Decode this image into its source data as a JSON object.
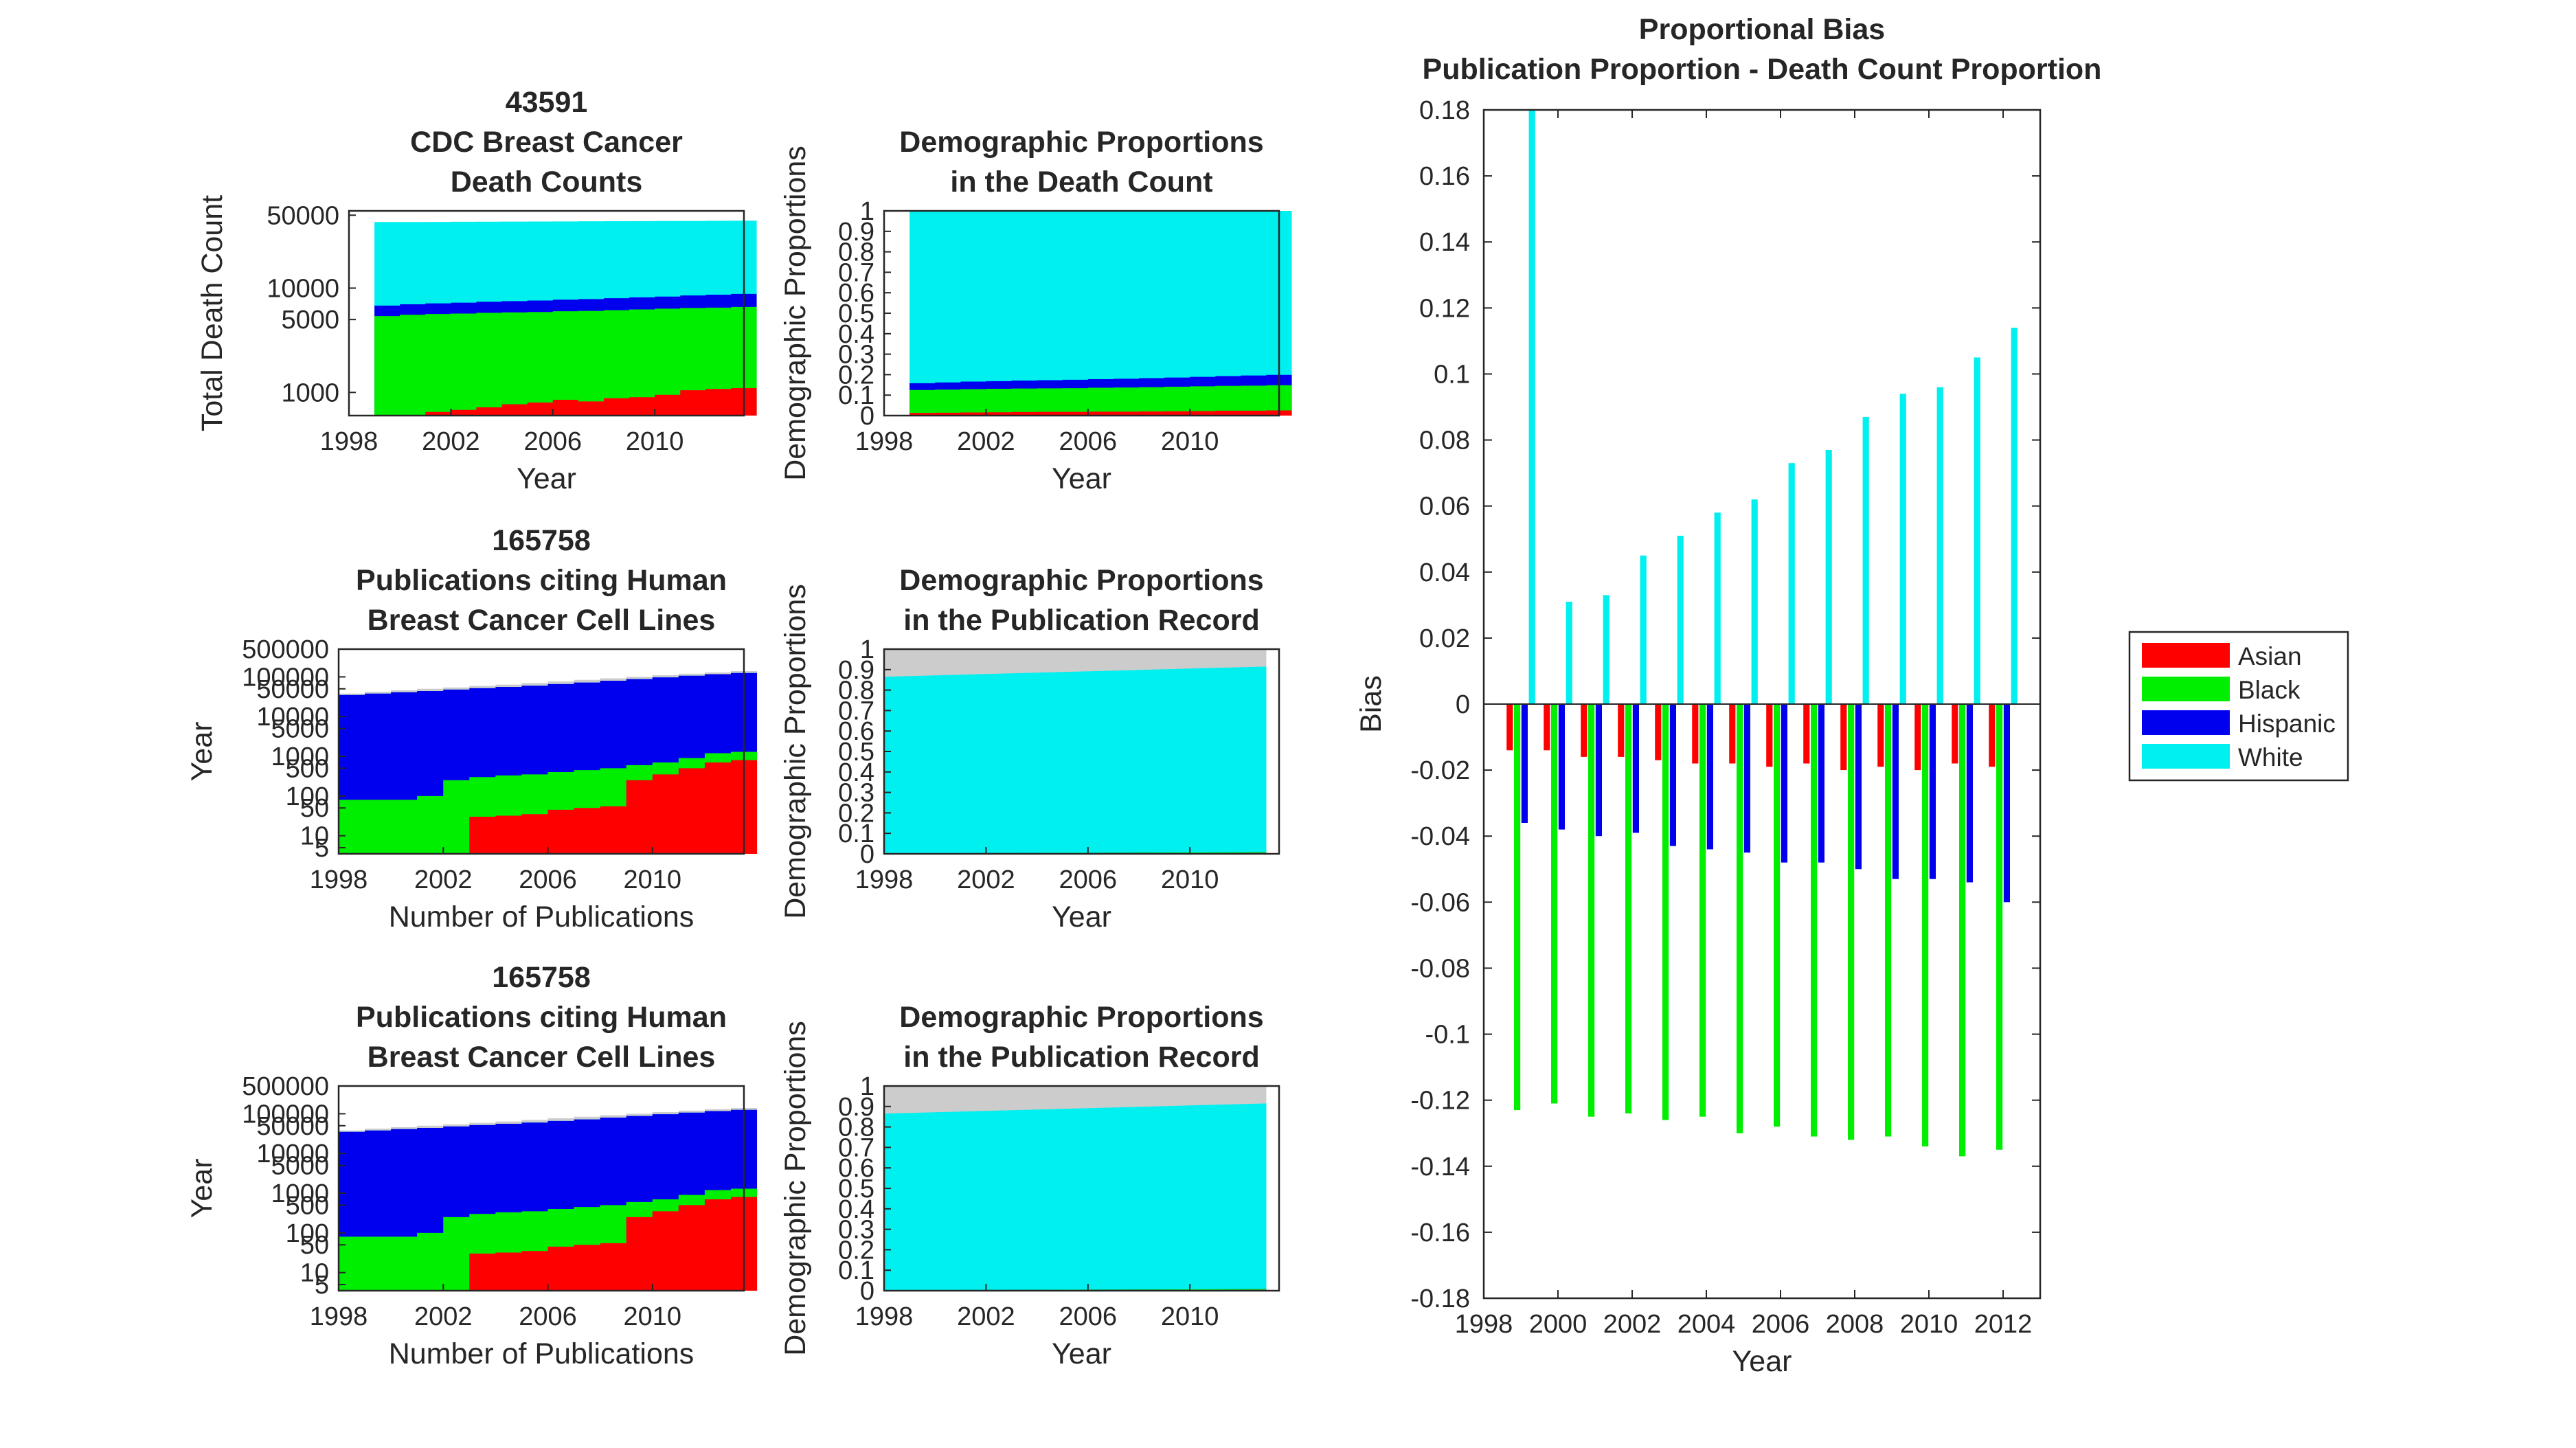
{
  "colors": {
    "Asian": "#ff0000",
    "Black": "#00ee00",
    "Hispanic": "#0000ee",
    "White": "#00f0f0",
    "Other": "#cccccc"
  },
  "chart_data": [
    {
      "id": "deaths",
      "type": "area",
      "title": [
        "43591",
        "CDC Breast Cancer",
        "Death Counts"
      ],
      "xlabel": "Year",
      "ylabel": "Total Death Count",
      "yscale": "log",
      "xlim": [
        1998,
        2013.5
      ],
      "ylim": [
        600,
        55000
      ],
      "xticks": [
        1998,
        2002,
        2006,
        2010
      ],
      "yticks": [
        1000,
        5000,
        10000,
        50000
      ],
      "ytick_labels": [
        "1000",
        "5000",
        "10000",
        "50000"
      ],
      "x": [
        1999,
        2000,
        2001,
        2002,
        2003,
        2004,
        2005,
        2006,
        2007,
        2008,
        2009,
        2010,
        2011,
        2012,
        2013
      ],
      "cumulative": [
        {
          "name": "Asian",
          "values": [
            580,
            600,
            650,
            680,
            720,
            770,
            800,
            850,
            820,
            880,
            900,
            950,
            1050,
            1080,
            1100
          ]
        },
        {
          "name": "Black",
          "values": [
            5400,
            5550,
            5650,
            5700,
            5800,
            5850,
            5900,
            6000,
            6050,
            6150,
            6250,
            6350,
            6450,
            6500,
            6600
          ]
        },
        {
          "name": "Hispanic",
          "values": [
            6800,
            7000,
            7150,
            7250,
            7400,
            7500,
            7600,
            7750,
            7850,
            8000,
            8150,
            8300,
            8500,
            8650,
            8800
          ]
        },
        {
          "name": "White",
          "values": [
            43000,
            43000,
            43100,
            43200,
            43300,
            43400,
            43500,
            43600,
            43700,
            43800,
            43900,
            44000,
            44100,
            44200,
            44300
          ]
        }
      ]
    },
    {
      "id": "death_prop",
      "type": "area",
      "title": [
        "Demographic Proportions",
        "in the Death Count"
      ],
      "xlabel": "Year",
      "ylabel": "Demographic Proportions",
      "xlim": [
        1998,
        2013.5
      ],
      "ylim": [
        0,
        1
      ],
      "xticks": [
        1998,
        2002,
        2006,
        2010
      ],
      "yticks": [
        0,
        0.1,
        0.2,
        0.3,
        0.4,
        0.5,
        0.6,
        0.7,
        0.8,
        0.9,
        1
      ],
      "ytick_labels": [
        "0",
        "0.1",
        "0.2",
        "0.3",
        "0.4",
        "0.5",
        "0.6",
        "0.7",
        "0.8",
        "0.9",
        "1"
      ],
      "x": [
        1999,
        2000,
        2001,
        2002,
        2003,
        2004,
        2005,
        2006,
        2007,
        2008,
        2009,
        2010,
        2011,
        2012,
        2013
      ],
      "cumulative": [
        {
          "name": "Asian",
          "values": [
            0.013,
            0.014,
            0.015,
            0.016,
            0.017,
            0.018,
            0.018,
            0.019,
            0.019,
            0.02,
            0.021,
            0.022,
            0.024,
            0.024,
            0.025
          ]
        },
        {
          "name": "Black",
          "values": [
            0.125,
            0.127,
            0.129,
            0.131,
            0.132,
            0.133,
            0.134,
            0.136,
            0.137,
            0.139,
            0.141,
            0.143,
            0.145,
            0.146,
            0.148
          ]
        },
        {
          "name": "Hispanic",
          "values": [
            0.158,
            0.162,
            0.166,
            0.168,
            0.171,
            0.173,
            0.175,
            0.178,
            0.18,
            0.183,
            0.186,
            0.189,
            0.193,
            0.196,
            0.199
          ]
        },
        {
          "name": "White",
          "values": [
            1,
            1,
            1,
            1,
            1,
            1,
            1,
            1,
            1,
            1,
            1,
            1,
            1,
            1,
            1
          ]
        }
      ]
    },
    {
      "id": "pubs1",
      "type": "area",
      "title": [
        "165758",
        "Publications citing Human",
        "Breast Cancer Cell Lines"
      ],
      "xlabel": "Number of Publications",
      "ylabel": "Year",
      "yscale": "log",
      "xlim": [
        1998,
        2013.5
      ],
      "ylim": [
        3.5,
        500000
      ],
      "xticks": [
        1998,
        2002,
        2006,
        2010
      ],
      "yticks": [
        5,
        10,
        50,
        100,
        500,
        1000,
        5000,
        10000,
        50000,
        100000,
        500000
      ],
      "ytick_labels": [
        "5",
        "10",
        "50",
        "100",
        "500",
        "1000",
        "5000",
        "10000",
        "50000",
        "100000",
        "500000"
      ],
      "x": [
        1998,
        1999,
        2000,
        2001,
        2002,
        2003,
        2004,
        2005,
        2006,
        2007,
        2008,
        2009,
        2010,
        2011,
        2012,
        2013
      ],
      "cumulative": [
        {
          "name": "Asian",
          "values": [
            3.5,
            3.5,
            3.5,
            3.5,
            3.5,
            30,
            32,
            35,
            45,
            50,
            55,
            250,
            350,
            500,
            700,
            800
          ]
        },
        {
          "name": "Black",
          "values": [
            80,
            80,
            80,
            100,
            250,
            300,
            330,
            350,
            400,
            450,
            500,
            600,
            700,
            900,
            1200,
            1300
          ]
        },
        {
          "name": "Hispanic",
          "values": [
            35000,
            38000,
            41000,
            44000,
            48000,
            52000,
            56000,
            60000,
            66000,
            72000,
            80000,
            88000,
            97000,
            107000,
            117000,
            125000
          ]
        },
        {
          "name": "White",
          "values": [
            35000,
            38000,
            41000,
            44000,
            48000,
            52000,
            56000,
            60000,
            66000,
            72000,
            80000,
            88000,
            97000,
            107000,
            117000,
            125000
          ]
        },
        {
          "name": "Other",
          "values": [
            38000,
            42000,
            46000,
            50000,
            54000,
            59000,
            64000,
            70000,
            77000,
            84000,
            92000,
            100000,
            110000,
            120000,
            130000,
            140000
          ]
        }
      ]
    },
    {
      "id": "pub_prop1",
      "type": "area",
      "title": [
        "Demographic Proportions",
        "in the Publication Record"
      ],
      "xlabel": "Year",
      "ylabel": "Demographic Proportions",
      "xlim": [
        1998,
        2013.5
      ],
      "ylim": [
        0,
        1
      ],
      "xticks": [
        1998,
        2002,
        2006,
        2010
      ],
      "yticks": [
        0,
        0.1,
        0.2,
        0.3,
        0.4,
        0.5,
        0.6,
        0.7,
        0.8,
        0.9,
        1
      ],
      "ytick_labels": [
        "0",
        "0.1",
        "0.2",
        "0.3",
        "0.4",
        "0.5",
        "0.6",
        "0.7",
        "0.8",
        "0.9",
        "1"
      ],
      "x": [
        1998,
        2013
      ],
      "cumulative": [
        {
          "name": "Asian",
          "values": [
            0.0,
            0.004
          ]
        },
        {
          "name": "Black",
          "values": [
            0.002,
            0.008
          ]
        },
        {
          "name": "Hispanic",
          "values": [
            0.002,
            0.008
          ]
        },
        {
          "name": "White",
          "values": [
            0.865,
            0.915
          ]
        },
        {
          "name": "Other",
          "values": [
            1,
            1
          ]
        }
      ]
    },
    {
      "id": "pubs2",
      "type": "area",
      "title": [
        "165758",
        "Publications citing Human",
        "Breast Cancer Cell Lines"
      ],
      "xlabel": "Number of Publications",
      "ylabel": "Year",
      "yscale": "log",
      "xlim": [
        1998,
        2013.5
      ],
      "ylim": [
        3.5,
        500000
      ],
      "xticks": [
        1998,
        2002,
        2006,
        2010
      ],
      "yticks": [
        5,
        10,
        50,
        100,
        500,
        1000,
        5000,
        10000,
        50000,
        100000,
        500000
      ],
      "ytick_labels": [
        "5",
        "10",
        "50",
        "100",
        "500",
        "1000",
        "5000",
        "10000",
        "50000",
        "100000",
        "500000"
      ],
      "x": [
        1998,
        1999,
        2000,
        2001,
        2002,
        2003,
        2004,
        2005,
        2006,
        2007,
        2008,
        2009,
        2010,
        2011,
        2012,
        2013
      ],
      "cumulative": [
        {
          "name": "Asian",
          "values": [
            3.5,
            3.5,
            3.5,
            3.5,
            3.5,
            30,
            32,
            35,
            45,
            50,
            55,
            250,
            350,
            500,
            700,
            800
          ]
        },
        {
          "name": "Black",
          "values": [
            80,
            80,
            80,
            100,
            250,
            300,
            330,
            350,
            400,
            450,
            500,
            600,
            700,
            900,
            1200,
            1300
          ]
        },
        {
          "name": "Hispanic",
          "values": [
            35000,
            38000,
            41000,
            44000,
            48000,
            52000,
            56000,
            60000,
            66000,
            72000,
            80000,
            88000,
            97000,
            107000,
            117000,
            125000
          ]
        },
        {
          "name": "White",
          "values": [
            35000,
            38000,
            41000,
            44000,
            48000,
            52000,
            56000,
            60000,
            66000,
            72000,
            80000,
            88000,
            97000,
            107000,
            117000,
            125000
          ]
        },
        {
          "name": "Other",
          "values": [
            38000,
            42000,
            46000,
            50000,
            54000,
            59000,
            64000,
            70000,
            77000,
            84000,
            92000,
            100000,
            110000,
            120000,
            130000,
            140000
          ]
        }
      ]
    },
    {
      "id": "pub_prop2",
      "type": "area",
      "title": [
        "Demographic Proportions",
        "in the Publication Record"
      ],
      "xlabel": "Year",
      "ylabel": "Demographic Proportions",
      "xlim": [
        1998,
        2013.5
      ],
      "ylim": [
        0,
        1
      ],
      "xticks": [
        1998,
        2002,
        2006,
        2010
      ],
      "yticks": [
        0,
        0.1,
        0.2,
        0.3,
        0.4,
        0.5,
        0.6,
        0.7,
        0.8,
        0.9,
        1
      ],
      "ytick_labels": [
        "0",
        "0.1",
        "0.2",
        "0.3",
        "0.4",
        "0.5",
        "0.6",
        "0.7",
        "0.8",
        "0.9",
        "1"
      ],
      "x": [
        1998,
        2013
      ],
      "cumulative": [
        {
          "name": "Asian",
          "values": [
            0.0,
            0.004
          ]
        },
        {
          "name": "Black",
          "values": [
            0.002,
            0.008
          ]
        },
        {
          "name": "Hispanic",
          "values": [
            0.002,
            0.008
          ]
        },
        {
          "name": "White",
          "values": [
            0.865,
            0.915
          ]
        },
        {
          "name": "Other",
          "values": [
            1,
            1
          ]
        }
      ]
    },
    {
      "id": "bias",
      "type": "bar",
      "title": [
        "Proportional Bias",
        "Publication Proportion - Death Count Proportion"
      ],
      "xlabel": "Year",
      "ylabel": "Bias",
      "xlim": [
        1998,
        2013
      ],
      "ylim": [
        -0.18,
        0.18
      ],
      "xticks": [
        1998,
        2000,
        2002,
        2004,
        2006,
        2008,
        2010,
        2012
      ],
      "yticks": [
        -0.18,
        -0.16,
        -0.14,
        -0.12,
        -0.1,
        -0.08,
        -0.06,
        -0.04,
        -0.02,
        0,
        0.02,
        0.04,
        0.06,
        0.08,
        0.1,
        0.12,
        0.14,
        0.16,
        0.18
      ],
      "ytick_labels": [
        "-0.18",
        "-0.16",
        "-0.14",
        "-0.12",
        "-0.1",
        "-0.08",
        "-0.06",
        "-0.04",
        "-0.02",
        "0",
        "0.02",
        "0.04",
        "0.06",
        "0.08",
        "0.1",
        "0.12",
        "0.14",
        "0.16",
        "0.18"
      ],
      "categories": [
        1999,
        2000,
        2001,
        2002,
        2003,
        2004,
        2005,
        2006,
        2007,
        2008,
        2009,
        2010,
        2011,
        2012
      ],
      "legend": [
        "Asian",
        "Black",
        "Hispanic",
        "White"
      ],
      "legend_position": "right",
      "series": [
        {
          "name": "Asian",
          "values": [
            -0.014,
            -0.014,
            -0.016,
            -0.016,
            -0.017,
            -0.018,
            -0.018,
            -0.019,
            -0.018,
            -0.02,
            -0.019,
            -0.02,
            -0.018,
            -0.019
          ]
        },
        {
          "name": "Black",
          "values": [
            -0.123,
            -0.121,
            -0.125,
            -0.124,
            -0.126,
            -0.125,
            -0.13,
            -0.128,
            -0.131,
            -0.132,
            -0.131,
            -0.134,
            -0.137,
            -0.135
          ]
        },
        {
          "name": "Hispanic",
          "values": [
            -0.036,
            -0.038,
            -0.04,
            -0.039,
            -0.043,
            -0.044,
            -0.045,
            -0.048,
            -0.048,
            -0.05,
            -0.053,
            -0.053,
            -0.054,
            -0.06
          ]
        },
        {
          "name": "White",
          "values": [
            0.18,
            0.031,
            0.033,
            0.045,
            0.051,
            0.058,
            0.062,
            0.073,
            0.077,
            0.087,
            0.094,
            0.096,
            0.105,
            0.114
          ]
        }
      ]
    }
  ]
}
